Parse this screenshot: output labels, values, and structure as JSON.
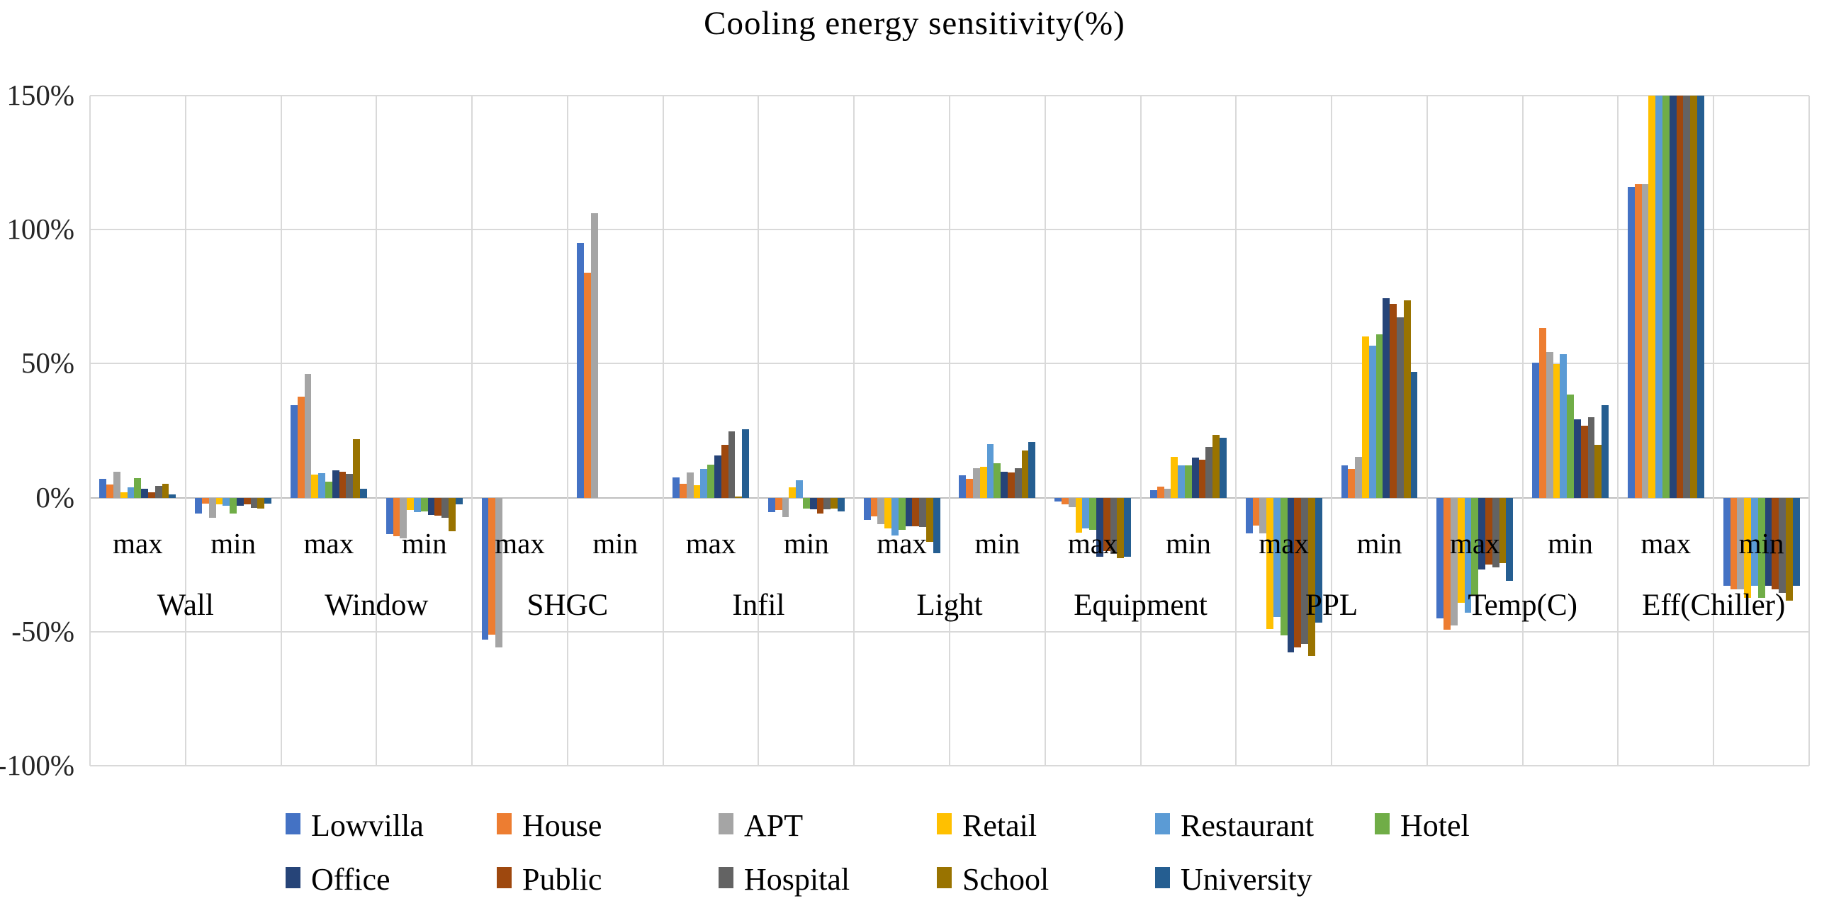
{
  "chart_data": {
    "type": "bar",
    "title": "Cooling energy sensitivity(%)",
    "xlabel": "",
    "ylabel": "",
    "ylim": [
      -100,
      150
    ],
    "grid": true,
    "legend_position": "bottom",
    "note": "Grouped bar chart; Eff(Chiller) max bars for Retail..University are clipped at the 150% axis maximum.",
    "y_axis": {
      "ticks": [
        {
          "value": 150,
          "label": "150%"
        },
        {
          "value": 100,
          "label": "100%"
        },
        {
          "value": 50,
          "label": "50%"
        },
        {
          "value": 0,
          "label": "0%"
        },
        {
          "value": -50,
          "label": "-50%"
        },
        {
          "value": -100,
          "label": "-100%"
        }
      ]
    },
    "categories": [
      "Wall",
      "Window",
      "SHGC",
      "Infil",
      "Light",
      "Equipment",
      "PPL",
      "Temp(C)",
      "Eff(Chiller)"
    ],
    "subcategories": [
      "max",
      "min"
    ],
    "cluster_order": [
      "Wall max",
      "Wall min",
      "Window max",
      "Window min",
      "SHGC max",
      "SHGC min",
      "Infil max",
      "Infil min",
      "Light max",
      "Light min",
      "Equipment max",
      "Equipment min",
      "PPL max",
      "PPL min",
      "Temp(C) max",
      "Temp(C) min",
      "Eff(Chiller) max",
      "Eff(Chiller) min"
    ],
    "series": [
      {
        "name": "Lowvilla",
        "color": "#4472C4",
        "values": [
          6.9,
          -5.9,
          34.6,
          -13.7,
          -53,
          95,
          7.5,
          -5.5,
          -8.4,
          8.4,
          -1.5,
          2.9,
          -13.3,
          12.1,
          -45.0,
          50.4,
          116,
          -33.0
        ]
      },
      {
        "name": "House",
        "color": "#ED7D31",
        "values": [
          4.8,
          -2.1,
          37.7,
          -14.5,
          -51,
          84,
          5.3,
          -4.6,
          -7.0,
          7.0,
          -2.5,
          4.1,
          -10.5,
          10.6,
          -49.3,
          63.2,
          117,
          -34.3
        ]
      },
      {
        "name": "APT",
        "color": "#A5A5A5",
        "values": [
          9.8,
          -7.4,
          46.1,
          -15.3,
          -56,
          106,
          9.3,
          -7.3,
          -10.0,
          11.0,
          -3.5,
          3.2,
          -13.3,
          15.1,
          -47.8,
          54.3,
          117,
          -34.3
        ]
      },
      {
        "name": "Retail",
        "color": "#FFC000",
        "values": [
          1.9,
          -2.4,
          8.6,
          -4.7,
          0,
          0,
          4.6,
          3.8,
          -11.5,
          11.5,
          -13.0,
          15.3,
          -49.0,
          60.1,
          -39.1,
          49.9,
          150,
          -37.4
        ]
      },
      {
        "name": "Restaurant",
        "color": "#5B9BD5",
        "values": [
          3.8,
          -3.0,
          9.2,
          -5.4,
          0,
          0,
          10.8,
          6.5,
          -14.0,
          20.0,
          -11.5,
          12.0,
          -44.6,
          56.6,
          -42.8,
          53.5,
          150,
          -33.0
        ]
      },
      {
        "name": "Hotel",
        "color": "#70AD47",
        "values": [
          7.4,
          -5.9,
          5.9,
          -5.1,
          0,
          0,
          12.2,
          -4.0,
          -12.0,
          12.8,
          -12.0,
          12.0,
          -51.5,
          60.9,
          -36.3,
          38.6,
          150,
          -37.4
        ]
      },
      {
        "name": "Office",
        "color": "#264478",
        "values": [
          3.4,
          -3.0,
          10.3,
          -6.5,
          0,
          0,
          15.8,
          -4.4,
          -10.6,
          9.7,
          -22.0,
          14.9,
          -57.7,
          74.3,
          -26.7,
          29.1,
          150,
          -33.0
        ]
      },
      {
        "name": "Public",
        "color": "#9E480E",
        "values": [
          2.0,
          -2.6,
          9.7,
          -6.6,
          0,
          0,
          19.8,
          -5.8,
          -10.6,
          9.3,
          -20.0,
          14.2,
          -56.0,
          72.4,
          -24.9,
          26.9,
          150,
          -34.3
        ]
      },
      {
        "name": "Hospital",
        "color": "#636363",
        "values": [
          4.3,
          -3.9,
          8.8,
          -7.4,
          0,
          0,
          24.8,
          -4.4,
          -11.0,
          11.0,
          -21.0,
          18.9,
          -54.5,
          67.2,
          -26.1,
          30.0,
          150,
          -35.6
        ]
      },
      {
        "name": "School",
        "color": "#997300",
        "values": [
          5.2,
          -4.1,
          21.7,
          -12.4,
          0,
          0,
          0.3,
          -4.0,
          -16.4,
          17.7,
          -22.5,
          23.3,
          -59.0,
          73.6,
          -24.5,
          19.8,
          150,
          -38.3
        ]
      },
      {
        "name": "University",
        "color": "#255E91",
        "values": [
          1.2,
          -2.1,
          3.2,
          -2.4,
          0,
          0,
          25.5,
          -5.0,
          -20.8,
          20.8,
          -22.0,
          22.4,
          -46.5,
          47.0,
          -31.0,
          34.4,
          150,
          -33.0
        ]
      }
    ],
    "legend": {
      "row1": [
        "Lowvilla",
        "House",
        "APT",
        "Retail",
        "Restaurant",
        "Hotel"
      ],
      "row2": [
        "Office",
        "Public",
        "Hospital",
        "School",
        "University"
      ]
    }
  }
}
